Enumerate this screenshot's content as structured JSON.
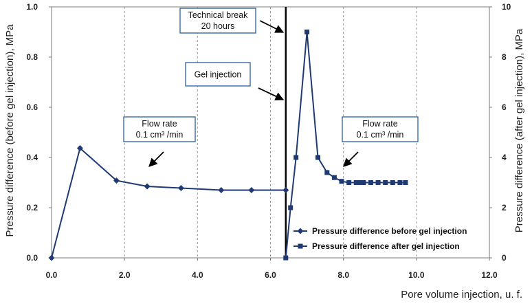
{
  "chart_data": {
    "type": "line",
    "xlabel": "Pore volume injection, u. f.",
    "ylabel_left": "Pressure difference (before gel injection), MPa",
    "ylabel_right": "Pressure difference (after gel injection), MPa",
    "xlim": [
      0,
      12
    ],
    "ylim_left": [
      0,
      1.0
    ],
    "ylim_right": [
      0,
      10
    ],
    "x_ticks": [
      "0.0",
      "2.0",
      "4.0",
      "6.0",
      "8.0",
      "10.0",
      "12.0"
    ],
    "y_left_ticks": [
      "0.0",
      "0.2",
      "0.4",
      "0.6",
      "0.8",
      "1.0"
    ],
    "y_right_ticks": [
      "0",
      "2",
      "4",
      "6",
      "8",
      "10"
    ],
    "grid": "vertical-dashed",
    "legend_position": "bottom-right",
    "series": [
      {
        "name": "Pressure difference before gel injection",
        "axis": "left",
        "marker": "diamond",
        "color": "#1f3a73",
        "x": [
          0.0,
          0.78,
          1.78,
          2.62,
          3.55,
          4.65,
          5.48,
          6.42
        ],
        "y": [
          0.0,
          0.437,
          0.308,
          0.285,
          0.278,
          0.27,
          0.27,
          0.27
        ]
      },
      {
        "name": "Pressure difference after gel injection",
        "axis": "right",
        "marker": "square",
        "color": "#1f3a73",
        "x": [
          6.42,
          6.55,
          6.7,
          7.0,
          7.3,
          7.55,
          7.75,
          7.95,
          8.15,
          8.35,
          8.45,
          8.55,
          8.75,
          8.95,
          9.15,
          9.35,
          9.55,
          9.7
        ],
        "y": [
          0,
          2.0,
          4.0,
          9.0,
          4.0,
          3.4,
          3.2,
          3.05,
          3.0,
          3.0,
          3.0,
          3.0,
          3.0,
          3.0,
          3.0,
          3.0,
          3.0,
          3.0
        ]
      }
    ],
    "vertical_line": {
      "x": 6.42,
      "color": "#000000"
    },
    "annotations": [
      {
        "id": "technical-break",
        "lines": [
          "Technical break",
          "20 hours"
        ]
      },
      {
        "id": "gel-injection",
        "lines": [
          "Gel injection"
        ]
      },
      {
        "id": "flow-rate-left",
        "lines": [
          "Flow rate",
          "0.1 cm³ /min"
        ]
      },
      {
        "id": "flow-rate-right",
        "lines": [
          "Flow rate",
          "0.1 cm³ /min"
        ]
      }
    ]
  }
}
